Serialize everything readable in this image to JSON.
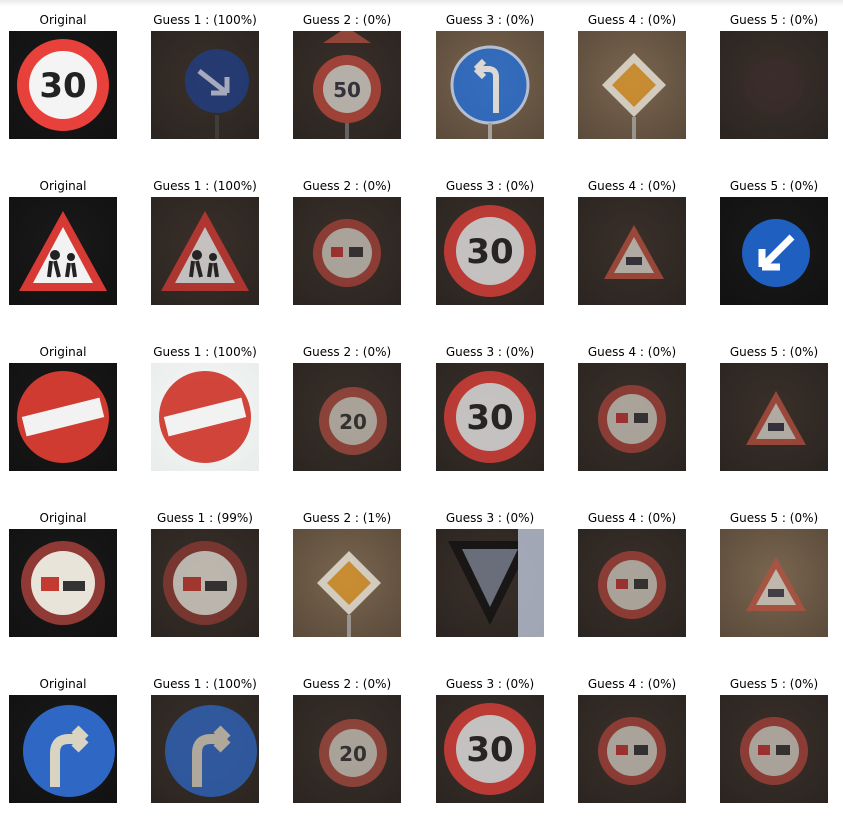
{
  "rows": [
    {
      "cells": [
        {
          "caption": "Original",
          "icon": "speed-limit-30-sign-icon",
          "tone": "bright"
        },
        {
          "caption": "Guess 1 : (100%)",
          "icon": "keep-right-sign-icon",
          "tone": "dark"
        },
        {
          "caption": "Guess 2 : (0%)",
          "icon": "speed-limit-50-sign-icon",
          "tone": "dark"
        },
        {
          "caption": "Guess 3 : (0%)",
          "icon": "turn-left-ahead-sign-icon",
          "tone": "medium"
        },
        {
          "caption": "Guess 4 : (0%)",
          "icon": "priority-road-sign-icon",
          "tone": "medium"
        },
        {
          "caption": "Guess 5 : (0%)",
          "icon": "dark-blur-icon",
          "tone": "dark"
        }
      ]
    },
    {
      "cells": [
        {
          "caption": "Original",
          "icon": "children-crossing-sign-icon",
          "tone": "bright"
        },
        {
          "caption": "Guess 1 : (100%)",
          "icon": "children-crossing-sign-icon",
          "tone": "dark"
        },
        {
          "caption": "Guess 2 : (0%)",
          "icon": "no-passing-sign-icon",
          "tone": "dark"
        },
        {
          "caption": "Guess 3 : (0%)",
          "icon": "speed-limit-30-sign-icon",
          "tone": "dark"
        },
        {
          "caption": "Guess 4 : (0%)",
          "icon": "warning-triangle-sign-icon",
          "tone": "dark"
        },
        {
          "caption": "Guess 5 : (0%)",
          "icon": "keep-left-sign-icon",
          "tone": "bright"
        }
      ]
    },
    {
      "cells": [
        {
          "caption": "Original",
          "icon": "no-entry-sign-icon",
          "tone": "bright"
        },
        {
          "caption": "Guess 1 : (100%)",
          "icon": "no-entry-sign-icon",
          "tone": "light"
        },
        {
          "caption": "Guess 2 : (0%)",
          "icon": "speed-limit-20-sign-icon",
          "tone": "dark"
        },
        {
          "caption": "Guess 3 : (0%)",
          "icon": "speed-limit-30-sign-icon",
          "tone": "dark"
        },
        {
          "caption": "Guess 4 : (0%)",
          "icon": "no-passing-sign-icon",
          "tone": "dark"
        },
        {
          "caption": "Guess 5 : (0%)",
          "icon": "warning-triangle-sign-icon",
          "tone": "dark"
        }
      ]
    },
    {
      "cells": [
        {
          "caption": "Original",
          "icon": "no-passing-trucks-sign-icon",
          "tone": "bright"
        },
        {
          "caption": "Guess 1 : (99%)",
          "icon": "no-passing-trucks-sign-icon",
          "tone": "dark"
        },
        {
          "caption": "Guess 2 : (1%)",
          "icon": "priority-road-sign-icon",
          "tone": "medium"
        },
        {
          "caption": "Guess 3 : (0%)",
          "icon": "yield-sign-icon",
          "tone": "dark"
        },
        {
          "caption": "Guess 4 : (0%)",
          "icon": "no-passing-sign-icon",
          "tone": "dark"
        },
        {
          "caption": "Guess 5 : (0%)",
          "icon": "warning-triangle-sign-icon",
          "tone": "medium"
        }
      ]
    },
    {
      "cells": [
        {
          "caption": "Original",
          "icon": "turn-right-ahead-sign-icon",
          "tone": "bright"
        },
        {
          "caption": "Guess 1 : (100%)",
          "icon": "turn-right-ahead-sign-icon",
          "tone": "dark"
        },
        {
          "caption": "Guess 2 : (0%)",
          "icon": "speed-limit-20-sign-icon",
          "tone": "dark"
        },
        {
          "caption": "Guess 3 : (0%)",
          "icon": "speed-limit-30-sign-icon",
          "tone": "dark"
        },
        {
          "caption": "Guess 4 : (0%)",
          "icon": "no-passing-sign-icon",
          "tone": "dark"
        },
        {
          "caption": "Guess 5 : (0%)",
          "icon": "no-passing-sign-icon",
          "tone": "dark"
        }
      ]
    }
  ]
}
